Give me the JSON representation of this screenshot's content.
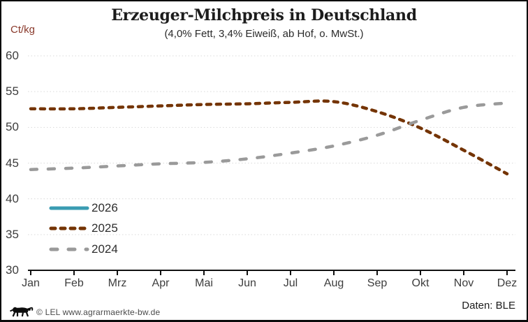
{
  "footer": {
    "copyright": "© LEL www.agrarmaerkte-bw.de",
    "source": "Daten: BLE",
    "logo_icon": "bw-lion-logo"
  },
  "colors": {
    "unit_label": "#8a3a2c",
    "axis": "#111111",
    "grid": "#d9d9d9",
    "tick_text": "#3d3d3d",
    "background": "#ffffff",
    "border": "#0a0a0a"
  },
  "chart_data": {
    "type": "line",
    "title": "Erzeuger-Milchpreis in Deutschland",
    "subtitle": "(4,0% Fett, 3,4% Eiweiß, ab Hof, o. MwSt.)",
    "ylabel": "Ct/kg",
    "xlabel": "",
    "categories": [
      "Jan",
      "Feb",
      "Mrz",
      "Apr",
      "Mai",
      "Jun",
      "Jul",
      "Aug",
      "Sep",
      "Okt",
      "Nov",
      "Dez"
    ],
    "y_ticks": [
      60,
      55,
      50,
      45,
      40,
      35,
      30
    ],
    "ylim": [
      30,
      61
    ],
    "grid": "horizontal-dotted",
    "legend_position": "inside-bottom-left",
    "series": [
      {
        "name": "2026",
        "color": "#3a9cb2",
        "style": "solid",
        "values": []
      },
      {
        "name": "2025",
        "color": "#743404",
        "style": "dashed",
        "values": [
          52.6,
          52.6,
          52.8,
          53.0,
          53.2,
          53.3,
          53.5,
          53.6,
          52.2,
          49.9,
          46.8,
          43.5
        ]
      },
      {
        "name": "2024",
        "color": "#9a9a9a",
        "style": "long-dashed",
        "values": [
          44.1,
          44.3,
          44.6,
          44.9,
          45.1,
          45.6,
          46.4,
          47.4,
          48.9,
          51.0,
          52.8,
          53.4
        ]
      }
    ]
  }
}
